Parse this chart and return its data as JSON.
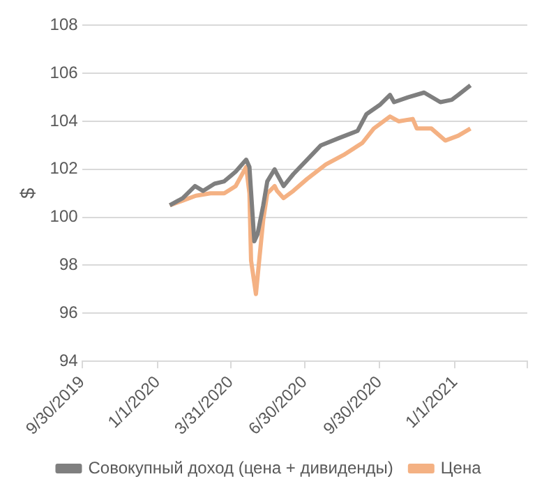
{
  "chart_data": {
    "type": "line",
    "ylabel": "$",
    "legend": "bottom",
    "grid": "y",
    "marker": "none",
    "line_style": "solid",
    "xlim": [
      "2019-09-30",
      "2021-03-31"
    ],
    "xticks": [
      {
        "value": "2019-09-30",
        "label": "9/30/2019"
      },
      {
        "value": "2020-01-01",
        "label": "1/1/2020"
      },
      {
        "value": "2020-03-31",
        "label": "3/31/2020"
      },
      {
        "value": "2020-06-30",
        "label": "6/30/2020"
      },
      {
        "value": "2020-09-30",
        "label": "9/30/2020"
      },
      {
        "value": "2021-01-01",
        "label": "1/1/2021"
      },
      {
        "value": "2021-03-31",
        "label": null
      }
    ],
    "ylim": [
      94,
      108
    ],
    "yticks": [
      94,
      96,
      98,
      100,
      102,
      104,
      106,
      108
    ],
    "series": [
      {
        "name": "Совокупный доход (цена + дивиденды)",
        "color": "#7f7f7f",
        "x": [
          "2020-01-16",
          "2020-02-01",
          "2020-02-16",
          "2020-02-26",
          "2020-03-11",
          "2020-03-23",
          "2020-04-06",
          "2020-04-19",
          "2020-04-23",
          "2020-04-29",
          "2020-05-03",
          "2020-05-10",
          "2020-05-15",
          "2020-05-24",
          "2020-05-27",
          "2020-06-04",
          "2020-06-16",
          "2020-07-03",
          "2020-07-20",
          "2020-08-11",
          "2020-09-03",
          "2020-09-14",
          "2020-10-01",
          "2020-10-13",
          "2020-10-18",
          "2020-11-04",
          "2020-11-24",
          "2020-12-14",
          "2020-12-28",
          "2021-01-05",
          "2021-01-20"
        ],
        "values": [
          100.5,
          100.8,
          101.3,
          101.1,
          101.4,
          101.5,
          101.9,
          102.4,
          102.1,
          99.0,
          99.3,
          100.5,
          101.5,
          102.0,
          101.8,
          101.3,
          101.8,
          102.4,
          103.0,
          103.3,
          103.6,
          104.3,
          104.7,
          105.1,
          104.8,
          105.0,
          105.2,
          104.8,
          104.9,
          105.1,
          105.5
        ]
      },
      {
        "name": "Цена",
        "color": "#f4b183",
        "x": [
          "2020-01-16",
          "2020-02-01",
          "2020-02-17",
          "2020-03-06",
          "2020-03-23",
          "2020-04-06",
          "2020-04-19",
          "2020-04-23",
          "2020-04-25",
          "2020-05-01",
          "2020-05-05",
          "2020-05-10",
          "2020-05-15",
          "2020-05-24",
          "2020-05-27",
          "2020-06-04",
          "2020-06-16",
          "2020-07-03",
          "2020-07-26",
          "2020-08-17",
          "2020-09-09",
          "2020-09-23",
          "2020-10-13",
          "2020-10-24",
          "2020-11-10",
          "2020-11-15",
          "2020-12-03",
          "2020-12-20",
          "2021-01-05",
          "2021-01-20"
        ],
        "values": [
          100.5,
          100.7,
          100.9,
          101.0,
          101.0,
          101.3,
          102.1,
          101.0,
          98.2,
          96.8,
          98.2,
          99.9,
          101.0,
          101.3,
          101.1,
          100.8,
          101.1,
          101.6,
          102.2,
          102.6,
          103.1,
          103.7,
          104.2,
          104.0,
          104.1,
          103.7,
          103.7,
          103.2,
          103.4,
          103.7
        ]
      }
    ]
  }
}
